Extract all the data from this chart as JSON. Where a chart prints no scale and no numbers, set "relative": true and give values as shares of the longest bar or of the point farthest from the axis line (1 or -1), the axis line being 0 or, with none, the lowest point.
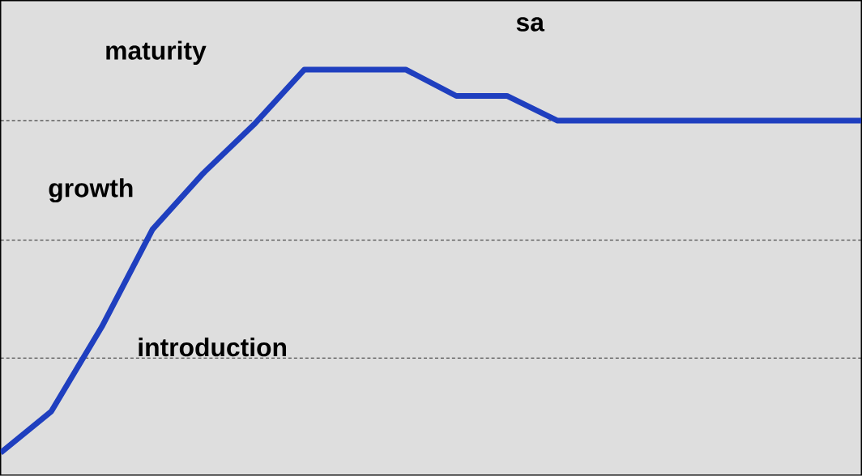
{
  "chart_data": {
    "type": "line",
    "relative": true,
    "categories": [
      null,
      null,
      null,
      null,
      null,
      null,
      null,
      null,
      null,
      null,
      null,
      null,
      null,
      null,
      null,
      null,
      null,
      null
    ],
    "values": [
      0.055,
      0.157,
      0.366,
      0.606,
      0.744,
      0.864,
      1,
      1,
      1,
      0.935,
      0.935,
      0.874,
      0.874,
      0.874,
      0.874,
      0.874,
      0.874,
      0.874
    ],
    "color": "#1f3fbf",
    "tick_labels": false,
    "ref_lines": [
      {
        "axis": "y",
        "value": 0.874,
        "line_style": "dashed"
      },
      {
        "axis": "y",
        "value": 0.579,
        "line_style": "dashed"
      },
      {
        "axis": "y",
        "value": 0.289,
        "line_style": "dashed"
      }
    ],
    "annotations": [
      "maturity",
      "growth",
      "introduction",
      "sa"
    ]
  }
}
